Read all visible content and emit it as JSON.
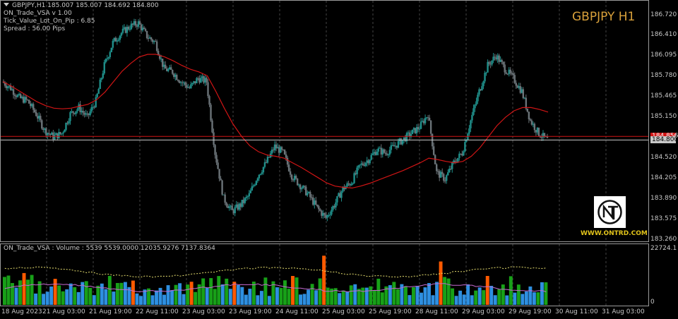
{
  "chart": {
    "title": "GBPJPY H1",
    "legend": {
      "symbol_line": "GBPJPY,H1  185.007 185.007 184.692 184.800",
      "indicator_name": "ON_Trade_VSA v 1.00",
      "tick_value": "Tick_Value_Lot_On_Pip : 6.85",
      "spread": "Spread : 56.00  Pips"
    },
    "price_axis": [
      "186.720",
      "186.410",
      "186.095",
      "185.780",
      "185.465",
      "185.150",
      "184.835",
      "184.520",
      "184.205",
      "183.890",
      "183.575",
      "183.260"
    ],
    "current_price_tag": "184.800",
    "red_level_tag": "184.856",
    "volume_header": "ON_Trade_VSA : Volume : 5539 5539.0000 12035.9276 7137.8364",
    "volume_axis": {
      "max": "22724.1",
      "zero": "0"
    },
    "time_axis": [
      "18 Aug 2023",
      "21 Aug 03:00",
      "21 Aug 19:00",
      "22 Aug 11:00",
      "23 Aug 03:00",
      "23 Aug 19:00",
      "24 Aug 11:00",
      "25 Aug 03:00",
      "25 Aug 19:00",
      "28 Aug 11:00",
      "29 Aug 03:00",
      "29 Aug 19:00",
      "30 Aug 11:00",
      "31 Aug 03:00"
    ],
    "logo_url": "WWW.ONTRD.COM",
    "colors": {
      "background": "#000000",
      "bull_candle": "#1f8f8a",
      "bear_candle": "#6b7378",
      "ma_line": "#d01515",
      "price_line": "#c8c8c8",
      "level_line": "#d01515",
      "vol_green": "#18a018",
      "vol_blue": "#2e8fe0",
      "vol_orange": "#ff5a00",
      "vol_avg": "#c46ad0",
      "vol_upper": "#e8e070",
      "title": "#d9a13b"
    }
  },
  "chart_data": {
    "type": "line",
    "series": [
      {
        "values": [
          185.7,
          185.6,
          185.45,
          185.4,
          185.2,
          184.95,
          184.85,
          184.9,
          185.2,
          185.3,
          185.15,
          185.4,
          185.95,
          186.3,
          186.45,
          186.55,
          186.6,
          186.4,
          186.3,
          185.9,
          185.85,
          185.7,
          185.6,
          185.75,
          185.7,
          184.6,
          183.9,
          183.7,
          183.8,
          183.95,
          184.25,
          184.45,
          184.7,
          184.6,
          184.25,
          184.1,
          183.95,
          183.75,
          183.6,
          183.8,
          184.05,
          184.15,
          184.4,
          184.5,
          184.65,
          184.6,
          184.7,
          184.8,
          184.9,
          185.0,
          185.2,
          184.3,
          184.2,
          184.45,
          184.6,
          185.1,
          185.55,
          185.95,
          186.1,
          185.9,
          185.75,
          185.55,
          185.1,
          184.9,
          184.8
        ]
      },
      {
        "name": "MA",
        "values": [
          185.7,
          185.63,
          185.55,
          185.47,
          185.39,
          185.33,
          185.29,
          185.28,
          185.29,
          185.32,
          185.35,
          185.42,
          185.54,
          185.7,
          185.86,
          185.98,
          186.08,
          186.12,
          186.12,
          186.08,
          186.02,
          185.95,
          185.89,
          185.85,
          185.79,
          185.55,
          185.29,
          185.05,
          184.86,
          184.71,
          184.62,
          184.57,
          184.55,
          184.52,
          184.45,
          184.38,
          184.3,
          184.22,
          184.14,
          184.09,
          184.07,
          184.06,
          184.09,
          184.13,
          184.18,
          184.23,
          184.28,
          184.33,
          184.39,
          184.45,
          184.52,
          184.5,
          184.47,
          184.45,
          184.47,
          184.55,
          184.68,
          184.85,
          185.02,
          185.15,
          185.25,
          185.3,
          185.3,
          185.27,
          185.23
        ]
      }
    ],
    "ylim": [
      183.26,
      186.87
    ],
    "current_price": 184.8,
    "level_price": 184.856,
    "volume_ylim": [
      0,
      22724.1
    ]
  }
}
